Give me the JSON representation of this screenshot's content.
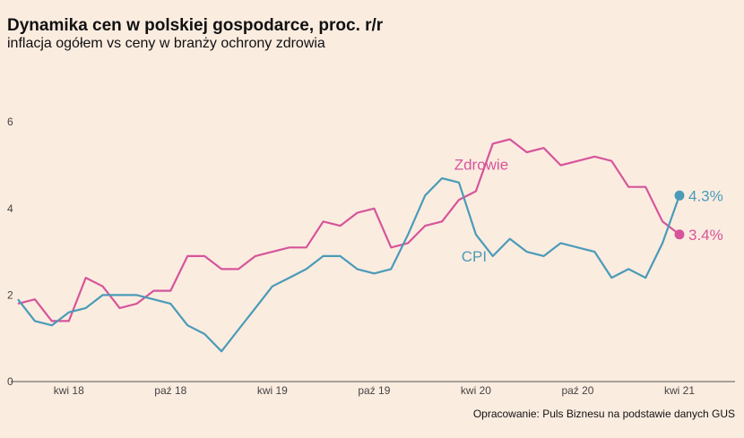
{
  "title": "Dynamika cen w polskiej gospodarce, proc. r/r",
  "subtitle": "inflacja ogółem vs ceny w branży ochrony zdrowia",
  "source": "Opracowanie: Puls Biznesu na podstawie danych GUS",
  "chart_data": {
    "type": "line",
    "title": "Dynamika cen w polskiej gospodarce, proc. r/r",
    "subtitle": "inflacja ogółem vs ceny w branży ochrony zdrowia",
    "xlabel": "",
    "ylabel": "",
    "ylim": [
      0,
      7
    ],
    "yticks": [
      0,
      2,
      4,
      6
    ],
    "x": [
      "2018-01",
      "2018-02",
      "2018-03",
      "2018-04",
      "2018-05",
      "2018-06",
      "2018-07",
      "2018-08",
      "2018-09",
      "2018-10",
      "2018-11",
      "2018-12",
      "2019-01",
      "2019-02",
      "2019-03",
      "2019-04",
      "2019-05",
      "2019-06",
      "2019-07",
      "2019-08",
      "2019-09",
      "2019-10",
      "2019-11",
      "2019-12",
      "2020-01",
      "2020-02",
      "2020-03",
      "2020-04",
      "2020-05",
      "2020-06",
      "2020-07",
      "2020-08",
      "2020-09",
      "2020-10",
      "2020-11",
      "2020-12",
      "2021-01",
      "2021-02",
      "2021-03",
      "2021-04"
    ],
    "xticks": [
      {
        "x": "2018-04",
        "label": "kwi 18"
      },
      {
        "x": "2018-10",
        "label": "paź 18"
      },
      {
        "x": "2019-04",
        "label": "kwi 19"
      },
      {
        "x": "2019-10",
        "label": "paź 19"
      },
      {
        "x": "2020-04",
        "label": "kwi 20"
      },
      {
        "x": "2020-10",
        "label": "paź 20"
      },
      {
        "x": "2021-04",
        "label": "kwi 21"
      }
    ],
    "grid": false,
    "series": [
      {
        "name": "Zdrowie",
        "color": "#d6559a",
        "values": [
          1.8,
          1.9,
          1.4,
          1.4,
          2.4,
          2.2,
          1.7,
          1.8,
          2.1,
          2.1,
          2.9,
          2.9,
          2.6,
          2.6,
          2.9,
          3.0,
          3.1,
          3.1,
          3.7,
          3.6,
          3.9,
          4.0,
          3.1,
          3.2,
          3.6,
          3.7,
          4.2,
          4.4,
          5.5,
          5.6,
          5.3,
          5.4,
          5.0,
          5.1,
          5.2,
          5.1,
          4.5,
          4.5,
          3.7,
          3.4
        ],
        "end_label": "3.4%"
      },
      {
        "name": "CPI",
        "color": "#4a9bb8",
        "values": [
          1.9,
          1.4,
          1.3,
          1.6,
          1.7,
          2.0,
          2.0,
          2.0,
          1.9,
          1.8,
          1.3,
          1.1,
          0.7,
          1.2,
          1.7,
          2.2,
          2.4,
          2.6,
          2.9,
          2.9,
          2.6,
          2.5,
          2.6,
          3.4,
          4.3,
          4.7,
          4.6,
          3.4,
          2.9,
          3.3,
          3.0,
          2.9,
          3.2,
          3.1,
          3.0,
          2.4,
          2.6,
          2.4,
          3.2,
          4.3
        ],
        "end_label": "4.3%"
      }
    ]
  }
}
